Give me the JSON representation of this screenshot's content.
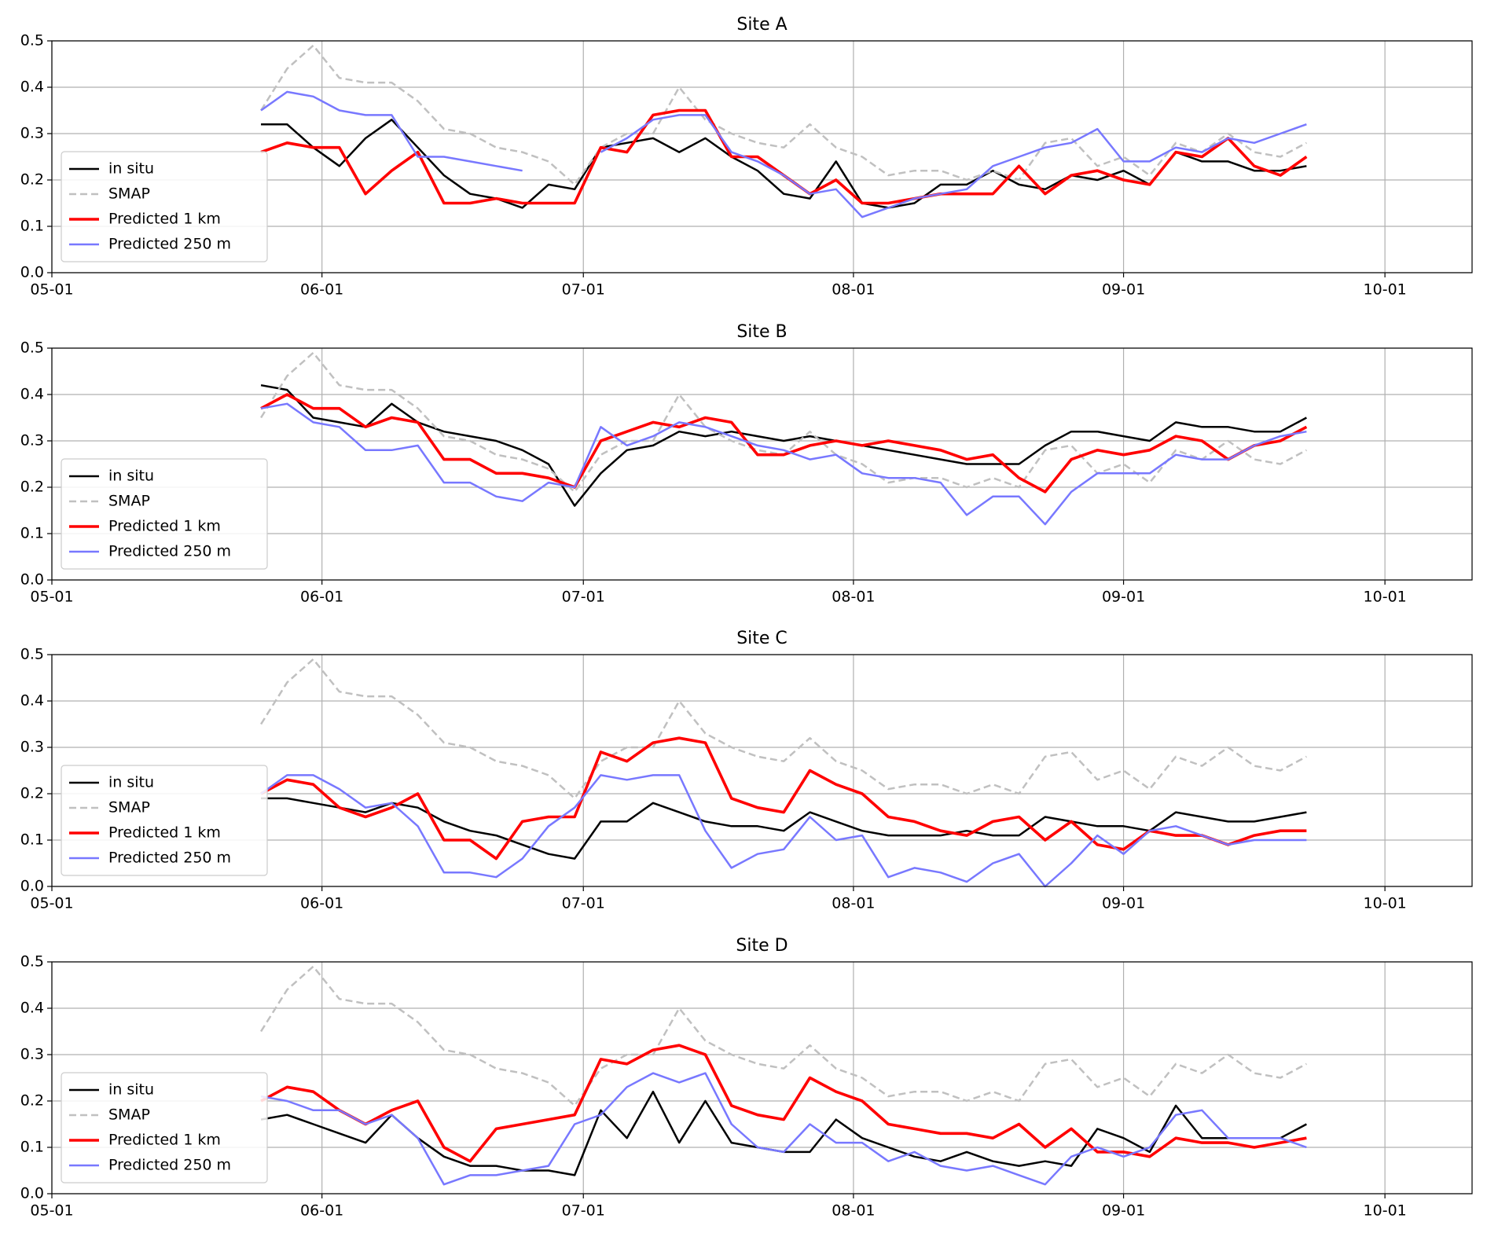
{
  "chart_data": [
    {
      "type": "line",
      "title": "Site A",
      "x": [
        "05-25",
        "05-28",
        "05-31",
        "06-03",
        "06-06",
        "06-09",
        "06-12",
        "06-15",
        "06-18",
        "06-21",
        "06-24",
        "06-27",
        "06-30",
        "07-03",
        "07-06",
        "07-09",
        "07-12",
        "07-15",
        "07-18",
        "07-21",
        "07-24",
        "07-27",
        "07-30",
        "08-02",
        "08-05",
        "08-08",
        "08-11",
        "08-14",
        "08-17",
        "08-20",
        "08-23",
        "08-26",
        "08-29",
        "09-01",
        "09-04",
        "09-07",
        "09-10",
        "09-13",
        "09-16",
        "09-19",
        "09-22"
      ],
      "xlim": [
        "05-01",
        "10-11"
      ],
      "xticks": [
        "05-01",
        "06-01",
        "07-01",
        "08-01",
        "09-01",
        "10-01"
      ],
      "ylim": [
        0,
        0.5
      ],
      "yticks": [
        {
          "value": 0,
          "label": "0.0"
        },
        0.1,
        0.2,
        0.3,
        0.4,
        0.5
      ],
      "grid": true,
      "legend": "lower left",
      "series": [
        {
          "name": "in situ",
          "color": "#000000",
          "linestyle": "solid",
          "linewidth": 2.5,
          "values": [
            0.32,
            0.32,
            0.27,
            0.23,
            0.29,
            0.33,
            0.27,
            0.21,
            0.17,
            0.16,
            0.14,
            0.19,
            0.18,
            0.27,
            0.28,
            0.29,
            0.26,
            0.29,
            0.25,
            0.22,
            0.17,
            0.16,
            0.24,
            0.15,
            0.14,
            0.15,
            0.19,
            0.19,
            0.22,
            0.19,
            0.18,
            0.21,
            0.2,
            0.22,
            0.19,
            0.26,
            0.24,
            0.24,
            0.22,
            0.22,
            0.23
          ]
        },
        {
          "name": "SMAP",
          "color": "#c0c0c0",
          "linestyle": "dashed",
          "linewidth": 2.5,
          "values": [
            0.35,
            0.44,
            0.49,
            0.42,
            0.41,
            0.41,
            0.37,
            0.31,
            0.3,
            0.27,
            0.26,
            0.24,
            0.19,
            0.27,
            0.3,
            0.3,
            0.4,
            0.33,
            0.3,
            0.28,
            0.27,
            0.32,
            0.27,
            0.25,
            0.21,
            0.22,
            0.22,
            0.2,
            0.22,
            0.2,
            0.28,
            0.29,
            0.23,
            0.25,
            0.21,
            0.28,
            0.26,
            0.3,
            0.26,
            0.25,
            0.28
          ]
        },
        {
          "name": "Predicted 1 km",
          "color": "#ff0000",
          "linestyle": "solid",
          "linewidth": 3.6,
          "values": [
            0.26,
            0.28,
            0.27,
            0.27,
            0.17,
            0.22,
            0.26,
            0.15,
            0.15,
            0.16,
            0.15,
            0.15,
            0.15,
            0.27,
            0.26,
            0.34,
            0.35,
            0.35,
            0.25,
            0.25,
            0.21,
            0.17,
            0.2,
            0.15,
            0.15,
            0.16,
            0.17,
            0.17,
            0.17,
            0.23,
            0.17,
            0.21,
            0.22,
            0.2,
            0.19,
            0.26,
            0.25,
            0.29,
            0.23,
            0.21,
            0.25
          ]
        },
        {
          "name": "Predicted 250 m",
          "color": "#7878ff",
          "linestyle": "solid",
          "linewidth": 2.5,
          "values": [
            0.35,
            0.39,
            0.38,
            0.35,
            0.34,
            0.34,
            0.25,
            0.25,
            0.24,
            0.23,
            0.22,
            null,
            null,
            0.26,
            0.29,
            0.33,
            0.34,
            0.34,
            0.26,
            0.24,
            0.21,
            0.17,
            0.18,
            0.12,
            0.14,
            0.16,
            0.17,
            0.18,
            0.23,
            0.25,
            0.27,
            0.28,
            0.31,
            0.24,
            0.24,
            0.27,
            0.26,
            0.29,
            0.28,
            0.3,
            0.32
          ]
        }
      ]
    },
    {
      "type": "line",
      "title": "Site B",
      "x": [
        "05-25",
        "05-28",
        "05-31",
        "06-03",
        "06-06",
        "06-09",
        "06-12",
        "06-15",
        "06-18",
        "06-21",
        "06-24",
        "06-27",
        "06-30",
        "07-03",
        "07-06",
        "07-09",
        "07-12",
        "07-15",
        "07-18",
        "07-21",
        "07-24",
        "07-27",
        "07-30",
        "08-02",
        "08-05",
        "08-08",
        "08-11",
        "08-14",
        "08-17",
        "08-20",
        "08-23",
        "08-26",
        "08-29",
        "09-01",
        "09-04",
        "09-07",
        "09-10",
        "09-13",
        "09-16",
        "09-19",
        "09-22"
      ],
      "xlim": [
        "05-01",
        "10-11"
      ],
      "xticks": [
        "05-01",
        "06-01",
        "07-01",
        "08-01",
        "09-01",
        "10-01"
      ],
      "ylim": [
        0,
        0.5
      ],
      "yticks": [
        {
          "value": 0,
          "label": "0.0"
        },
        0.1,
        0.2,
        0.3,
        0.4,
        0.5
      ],
      "grid": true,
      "legend": "lower left",
      "series": [
        {
          "name": "in situ",
          "color": "#000000",
          "linestyle": "solid",
          "linewidth": 2.5,
          "values": [
            0.42,
            0.41,
            0.35,
            0.34,
            0.33,
            0.38,
            0.34,
            0.32,
            0.31,
            0.3,
            0.28,
            0.25,
            0.16,
            0.23,
            0.28,
            0.29,
            0.32,
            0.31,
            0.32,
            0.31,
            0.3,
            0.31,
            0.3,
            0.29,
            0.28,
            0.27,
            0.26,
            0.25,
            0.25,
            0.25,
            0.29,
            0.32,
            0.32,
            0.31,
            0.3,
            0.34,
            0.33,
            0.33,
            0.32,
            0.32,
            0.35
          ]
        },
        {
          "name": "SMAP",
          "color": "#c0c0c0",
          "linestyle": "dashed",
          "linewidth": 2.5,
          "values": [
            0.35,
            0.44,
            0.49,
            0.42,
            0.41,
            0.41,
            0.37,
            0.31,
            0.3,
            0.27,
            0.26,
            0.24,
            0.19,
            0.27,
            0.3,
            0.3,
            0.4,
            0.33,
            0.3,
            0.28,
            0.27,
            0.32,
            0.27,
            0.25,
            0.21,
            0.22,
            0.22,
            0.2,
            0.22,
            0.2,
            0.28,
            0.29,
            0.23,
            0.25,
            0.21,
            0.28,
            0.26,
            0.3,
            0.26,
            0.25,
            0.28
          ]
        },
        {
          "name": "Predicted 1 km",
          "color": "#ff0000",
          "linestyle": "solid",
          "linewidth": 3.6,
          "values": [
            0.37,
            0.4,
            0.37,
            0.37,
            0.33,
            0.35,
            0.34,
            0.26,
            0.26,
            0.23,
            0.23,
            0.22,
            0.2,
            0.3,
            0.32,
            0.34,
            0.33,
            0.35,
            0.34,
            0.27,
            0.27,
            0.29,
            0.3,
            0.29,
            0.3,
            0.29,
            0.28,
            0.26,
            0.27,
            0.22,
            0.19,
            0.26,
            0.28,
            0.27,
            0.28,
            0.31,
            0.3,
            0.26,
            0.29,
            0.3,
            0.33
          ]
        },
        {
          "name": "Predicted 250 m",
          "color": "#7878ff",
          "linestyle": "solid",
          "linewidth": 2.5,
          "values": [
            0.37,
            0.38,
            0.34,
            0.33,
            0.28,
            0.28,
            0.29,
            0.21,
            0.21,
            0.18,
            0.17,
            0.21,
            0.2,
            0.33,
            0.29,
            0.31,
            0.34,
            0.33,
            0.31,
            0.29,
            0.28,
            0.26,
            0.27,
            0.23,
            0.22,
            0.22,
            0.21,
            0.14,
            0.18,
            0.18,
            0.12,
            0.19,
            0.23,
            0.23,
            0.23,
            0.27,
            0.26,
            0.26,
            0.29,
            0.31,
            0.32
          ]
        }
      ]
    },
    {
      "type": "line",
      "title": "Site C",
      "x": [
        "05-25",
        "05-28",
        "05-31",
        "06-03",
        "06-06",
        "06-09",
        "06-12",
        "06-15",
        "06-18",
        "06-21",
        "06-24",
        "06-27",
        "06-30",
        "07-03",
        "07-06",
        "07-09",
        "07-12",
        "07-15",
        "07-18",
        "07-21",
        "07-24",
        "07-27",
        "07-30",
        "08-02",
        "08-05",
        "08-08",
        "08-11",
        "08-14",
        "08-17",
        "08-20",
        "08-23",
        "08-26",
        "08-29",
        "09-01",
        "09-04",
        "09-07",
        "09-10",
        "09-13",
        "09-16",
        "09-19",
        "09-22"
      ],
      "xlim": [
        "05-01",
        "10-11"
      ],
      "xticks": [
        "05-01",
        "06-01",
        "07-01",
        "08-01",
        "09-01",
        "10-01"
      ],
      "ylim": [
        0,
        0.5
      ],
      "yticks": [
        {
          "value": 0,
          "label": "0.0"
        },
        0.1,
        0.2,
        0.3,
        0.4,
        0.5
      ],
      "grid": true,
      "legend": "lower left",
      "series": [
        {
          "name": "in situ",
          "color": "#000000",
          "linestyle": "solid",
          "linewidth": 2.5,
          "values": [
            0.19,
            0.19,
            0.18,
            0.17,
            0.16,
            0.18,
            0.17,
            0.14,
            0.12,
            0.11,
            0.09,
            0.07,
            0.06,
            0.14,
            0.14,
            0.18,
            0.16,
            0.14,
            0.13,
            0.13,
            0.12,
            0.16,
            0.14,
            0.12,
            0.11,
            0.11,
            0.11,
            0.12,
            0.11,
            0.11,
            0.15,
            0.14,
            0.13,
            0.13,
            0.12,
            0.16,
            0.15,
            0.14,
            0.14,
            0.15,
            0.16
          ]
        },
        {
          "name": "SMAP",
          "color": "#c0c0c0",
          "linestyle": "dashed",
          "linewidth": 2.5,
          "values": [
            0.35,
            0.44,
            0.49,
            0.42,
            0.41,
            0.41,
            0.37,
            0.31,
            0.3,
            0.27,
            0.26,
            0.24,
            0.19,
            0.27,
            0.3,
            0.3,
            0.4,
            0.33,
            0.3,
            0.28,
            0.27,
            0.32,
            0.27,
            0.25,
            0.21,
            0.22,
            0.22,
            0.2,
            0.22,
            0.2,
            0.28,
            0.29,
            0.23,
            0.25,
            0.21,
            0.28,
            0.26,
            0.3,
            0.26,
            0.25,
            0.28
          ]
        },
        {
          "name": "Predicted 1 km",
          "color": "#ff0000",
          "linestyle": "solid",
          "linewidth": 3.6,
          "values": [
            0.2,
            0.23,
            0.22,
            0.17,
            0.15,
            0.17,
            0.2,
            0.1,
            0.1,
            0.06,
            0.14,
            0.15,
            0.15,
            0.29,
            0.27,
            0.31,
            0.32,
            0.31,
            0.19,
            0.17,
            0.16,
            0.25,
            0.22,
            0.2,
            0.15,
            0.14,
            0.12,
            0.11,
            0.14,
            0.15,
            0.1,
            0.14,
            0.09,
            0.08,
            0.12,
            0.11,
            0.11,
            0.09,
            0.11,
            0.12,
            0.12
          ]
        },
        {
          "name": "Predicted 250 m",
          "color": "#7878ff",
          "linestyle": "solid",
          "linewidth": 2.5,
          "values": [
            0.2,
            0.24,
            0.24,
            0.21,
            0.17,
            0.18,
            0.13,
            0.03,
            0.03,
            0.02,
            0.06,
            0.13,
            0.17,
            0.24,
            0.23,
            0.24,
            0.24,
            0.12,
            0.04,
            0.07,
            0.08,
            0.15,
            0.1,
            0.11,
            0.02,
            0.04,
            0.03,
            0.01,
            0.05,
            0.07,
            0,
            0.05,
            0.11,
            0.07,
            0.12,
            0.13,
            0.11,
            0.09,
            0.1,
            0.1,
            0.1
          ]
        }
      ]
    },
    {
      "type": "line",
      "title": "Site D",
      "x": [
        "05-25",
        "05-28",
        "05-31",
        "06-03",
        "06-06",
        "06-09",
        "06-12",
        "06-15",
        "06-18",
        "06-21",
        "06-24",
        "06-27",
        "06-30",
        "07-03",
        "07-06",
        "07-09",
        "07-12",
        "07-15",
        "07-18",
        "07-21",
        "07-24",
        "07-27",
        "07-30",
        "08-02",
        "08-05",
        "08-08",
        "08-11",
        "08-14",
        "08-17",
        "08-20",
        "08-23",
        "08-26",
        "08-29",
        "09-01",
        "09-04",
        "09-07",
        "09-10",
        "09-13",
        "09-16",
        "09-19",
        "09-22"
      ],
      "xlim": [
        "05-01",
        "10-11"
      ],
      "xticks": [
        "05-01",
        "06-01",
        "07-01",
        "08-01",
        "09-01",
        "10-01"
      ],
      "ylim": [
        0,
        0.5
      ],
      "yticks": [
        {
          "value": 0,
          "label": "0.0"
        },
        0.1,
        0.2,
        0.3,
        0.4,
        0.5
      ],
      "grid": true,
      "legend": "lower left",
      "series": [
        {
          "name": "in situ",
          "color": "#000000",
          "linestyle": "solid",
          "linewidth": 2.5,
          "values": [
            0.16,
            0.17,
            0.15,
            0.13,
            0.11,
            0.17,
            0.12,
            0.08,
            0.06,
            0.06,
            0.05,
            0.05,
            0.04,
            0.18,
            0.12,
            0.22,
            0.11,
            0.2,
            0.11,
            0.1,
            0.09,
            0.09,
            0.16,
            0.12,
            0.1,
            0.08,
            0.07,
            0.09,
            0.07,
            0.06,
            0.07,
            0.06,
            0.14,
            0.12,
            0.09,
            0.19,
            0.12,
            0.12,
            0.12,
            0.12,
            0.15
          ]
        },
        {
          "name": "SMAP",
          "color": "#c0c0c0",
          "linestyle": "dashed",
          "linewidth": 2.5,
          "values": [
            0.35,
            0.44,
            0.49,
            0.42,
            0.41,
            0.41,
            0.37,
            0.31,
            0.3,
            0.27,
            0.26,
            0.24,
            0.19,
            0.27,
            0.3,
            0.3,
            0.4,
            0.33,
            0.3,
            0.28,
            0.27,
            0.32,
            0.27,
            0.25,
            0.21,
            0.22,
            0.22,
            0.2,
            0.22,
            0.2,
            0.28,
            0.29,
            0.23,
            0.25,
            0.21,
            0.28,
            0.26,
            0.3,
            0.26,
            0.25,
            0.28
          ]
        },
        {
          "name": "Predicted 1 km",
          "color": "#ff0000",
          "linestyle": "solid",
          "linewidth": 3.6,
          "values": [
            0.2,
            0.23,
            0.22,
            0.18,
            0.15,
            0.18,
            0.2,
            0.1,
            0.07,
            0.14,
            0.15,
            0.16,
            0.17,
            0.29,
            0.28,
            0.31,
            0.32,
            0.3,
            0.19,
            0.17,
            0.16,
            0.25,
            0.22,
            0.2,
            0.15,
            0.14,
            0.13,
            0.13,
            0.12,
            0.15,
            0.1,
            0.14,
            0.09,
            0.09,
            0.08,
            0.12,
            0.11,
            0.11,
            0.1,
            0.11,
            0.12
          ]
        },
        {
          "name": "Predicted 250 m",
          "color": "#7878ff",
          "linestyle": "solid",
          "linewidth": 2.5,
          "values": [
            0.21,
            0.2,
            0.18,
            0.18,
            0.15,
            0.17,
            0.12,
            0.02,
            0.04,
            0.04,
            0.05,
            0.06,
            0.15,
            0.17,
            0.23,
            0.26,
            0.24,
            0.26,
            0.15,
            0.1,
            0.09,
            0.15,
            0.11,
            0.11,
            0.07,
            0.09,
            0.06,
            0.05,
            0.06,
            0.04,
            0.02,
            0.08,
            0.1,
            0.08,
            0.1,
            0.17,
            0.18,
            0.12,
            0.12,
            0.12,
            0.1
          ]
        }
      ]
    }
  ]
}
